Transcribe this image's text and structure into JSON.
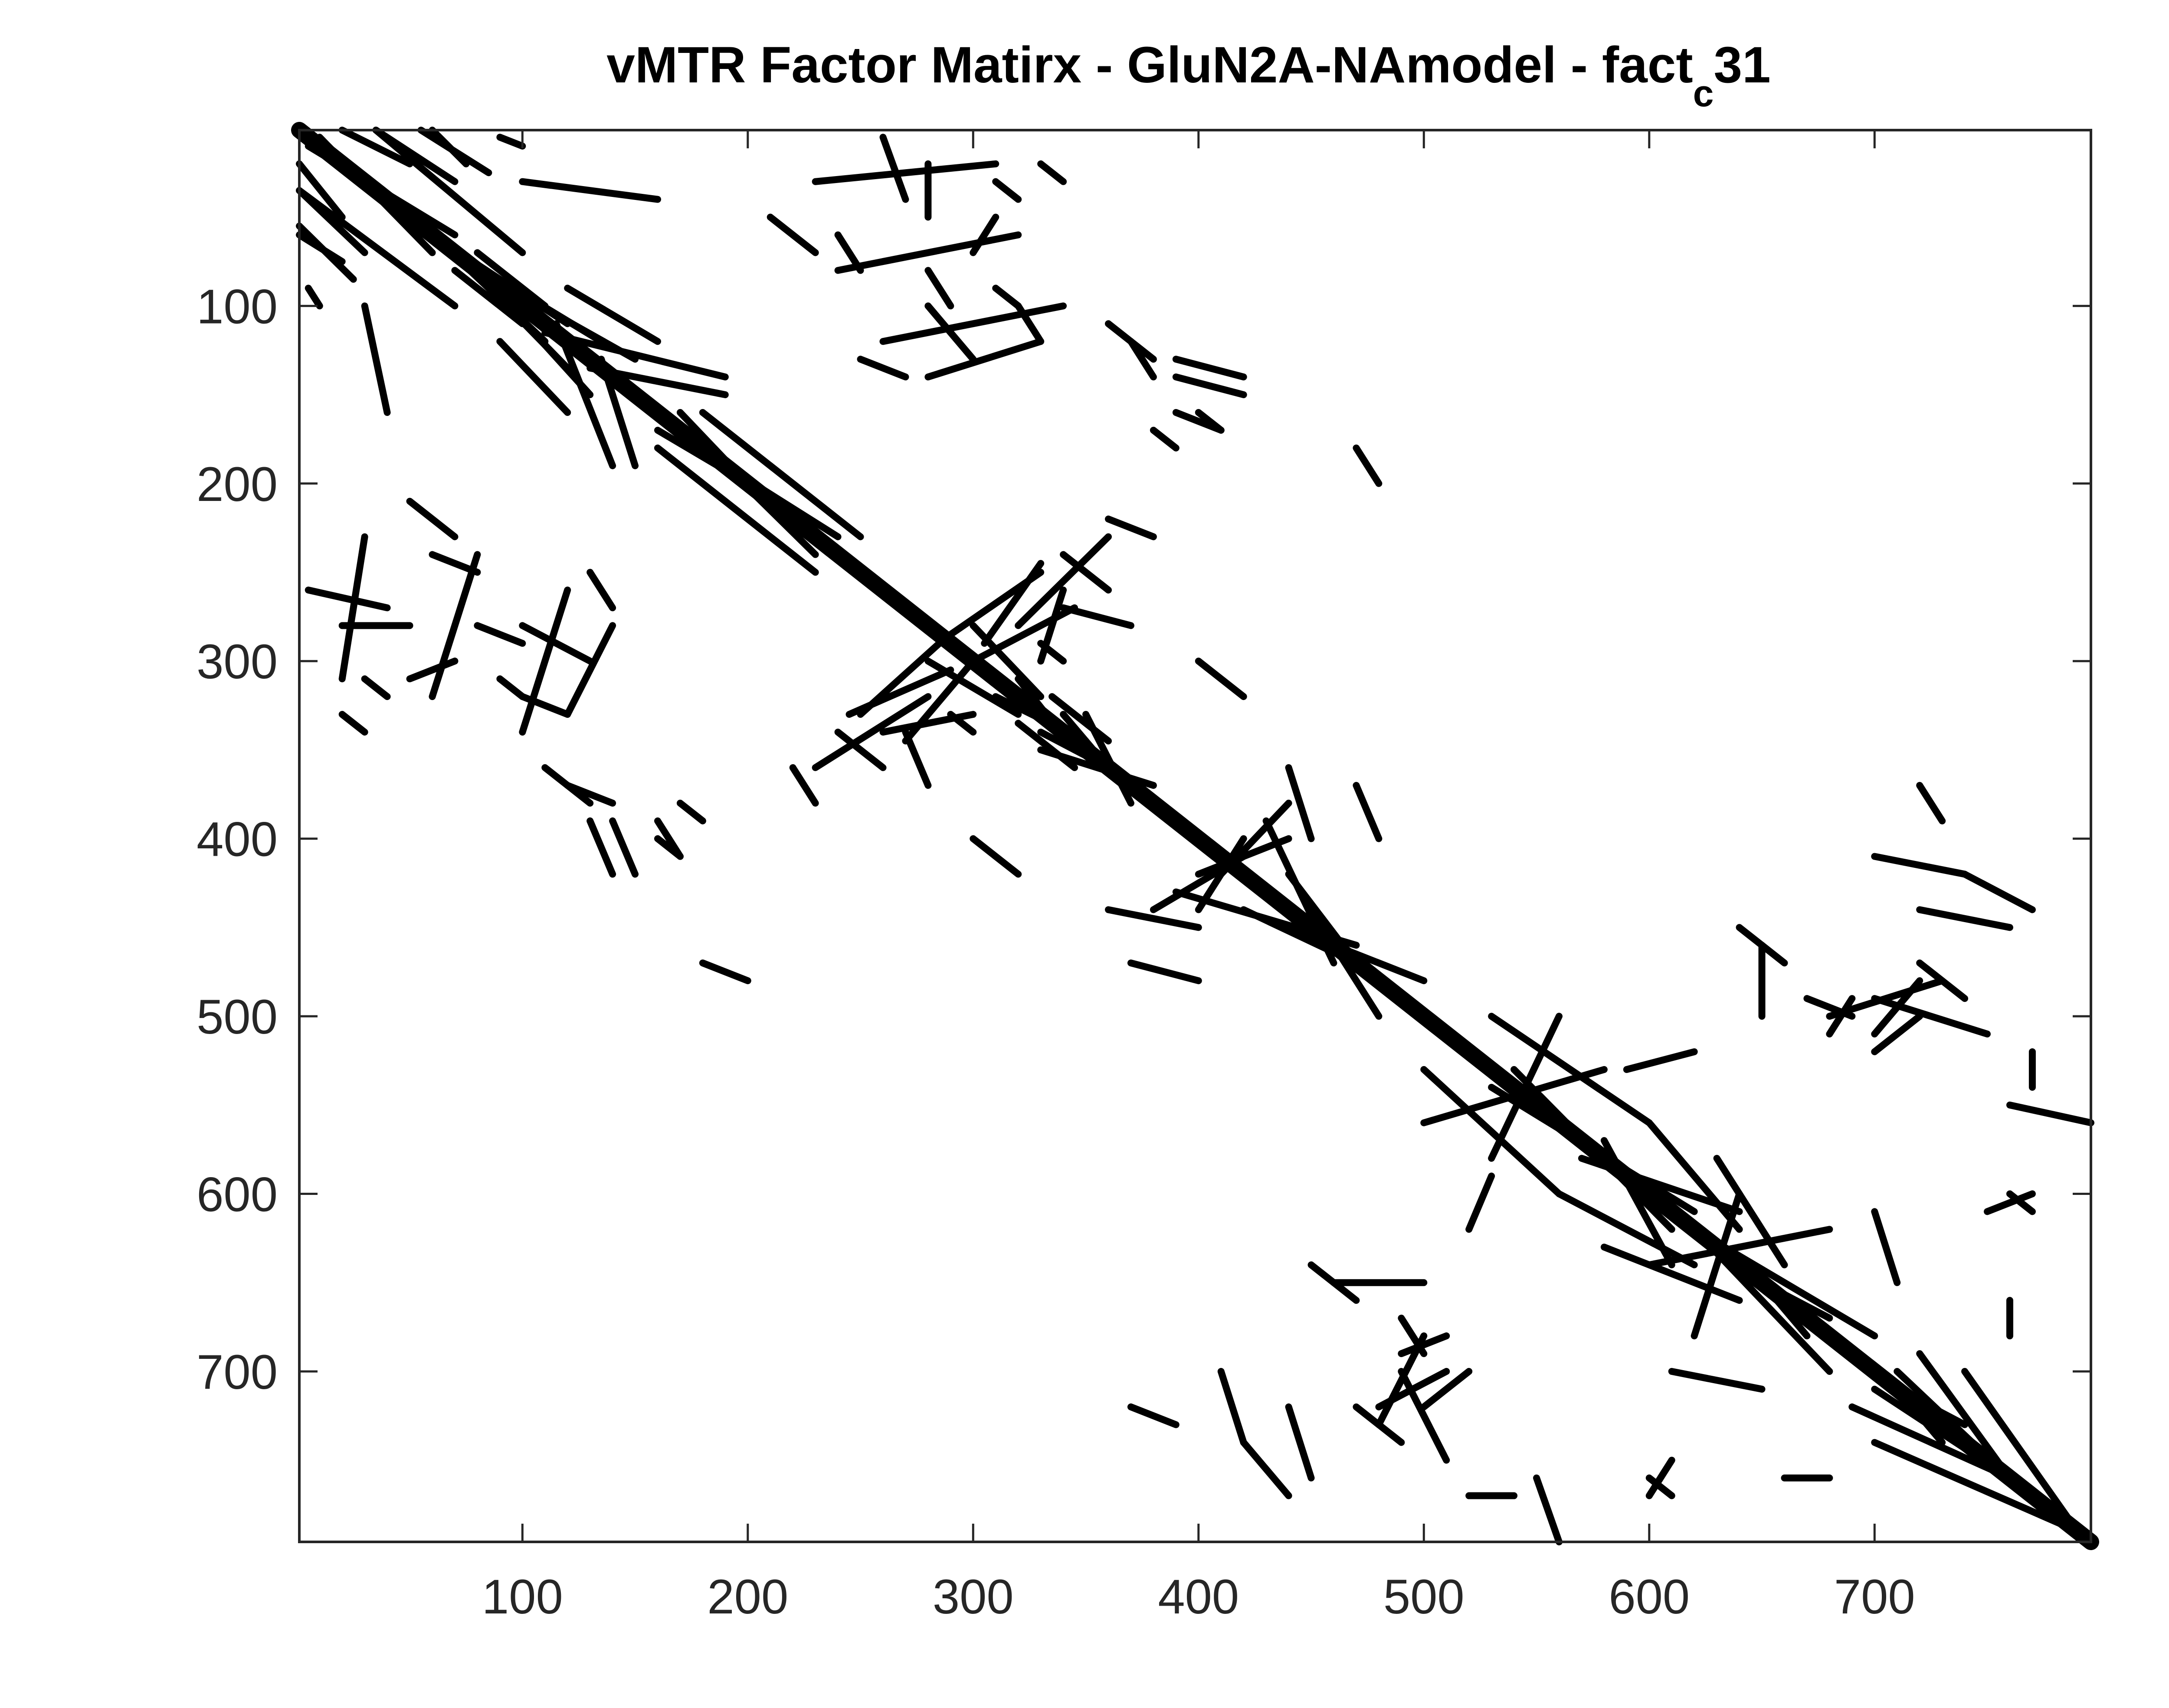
{
  "chart_data": {
    "type": "heatmap",
    "title": "vMTR Factor Matirx - GluN2A-NAmodel - fact",
    "title_subscript": "c",
    "title_suffix": "31",
    "xlabel": "",
    "ylabel": "",
    "xlim": [
      1,
      796
    ],
    "ylim": [
      1,
      796
    ],
    "y_reversed": true,
    "xticks": [
      100,
      200,
      300,
      400,
      500,
      600,
      700
    ],
    "yticks": [
      100,
      200,
      300,
      400,
      500,
      600,
      700
    ],
    "grid": false,
    "colors": {
      "filled": "#000000",
      "background": "#ffffff",
      "axis": "#262626"
    },
    "main_diagonal": {
      "from": 1,
      "to": 796
    },
    "segments": [
      [
        1,
        35,
        70,
        100
      ],
      [
        1,
        60,
        20,
        75
      ],
      [
        10,
        5,
        60,
        70
      ],
      [
        20,
        1,
        50,
        20
      ],
      [
        35,
        1,
        70,
        30
      ],
      [
        55,
        1,
        85,
        25
      ],
      [
        90,
        5,
        100,
        10
      ],
      [
        60,
        60,
        120,
        110
      ],
      [
        70,
        70,
        135,
        120
      ],
      [
        80,
        80,
        150,
        130
      ],
      [
        110,
        115,
        190,
        140
      ],
      [
        130,
        135,
        190,
        150
      ],
      [
        170,
        160,
        200,
        200
      ],
      [
        160,
        180,
        230,
        250
      ],
      [
        190,
        190,
        240,
        230
      ],
      [
        210,
        210,
        250,
        250
      ],
      [
        100,
        30,
        160,
        40
      ],
      [
        120,
        90,
        160,
        120
      ],
      [
        70,
        80,
        100,
        110
      ],
      [
        280,
        300,
        320,
        330
      ],
      [
        310,
        320,
        350,
        345
      ],
      [
        330,
        340,
        360,
        360
      ],
      [
        230,
        360,
        280,
        320
      ],
      [
        245,
        330,
        290,
        305
      ],
      [
        300,
        300,
        345,
        270
      ],
      [
        290,
        285,
        330,
        250
      ],
      [
        260,
        340,
        300,
        330
      ],
      [
        335,
        320,
        360,
        345
      ],
      [
        350,
        330,
        370,
        380
      ],
      [
        390,
        390,
        430,
        430
      ],
      [
        400,
        420,
        440,
        400
      ],
      [
        380,
        440,
        420,
        410
      ],
      [
        390,
        430,
        470,
        460
      ],
      [
        420,
        440,
        470,
        470
      ],
      [
        440,
        450,
        500,
        480
      ],
      [
        360,
        440,
        400,
        450
      ],
      [
        370,
        470,
        400,
        480
      ],
      [
        530,
        500,
        600,
        560
      ],
      [
        500,
        560,
        580,
        530
      ],
      [
        540,
        530,
        610,
        620
      ],
      [
        560,
        560,
        600,
        600
      ],
      [
        570,
        580,
        640,
        610
      ],
      [
        590,
        530,
        620,
        520
      ],
      [
        600,
        640,
        680,
        620
      ],
      [
        620,
        620,
        700,
        680
      ],
      [
        630,
        630,
        710,
        710
      ],
      [
        690,
        720,
        760,
        760
      ],
      [
        700,
        740,
        790,
        790
      ],
      [
        710,
        700,
        760,
        760
      ],
      [
        680,
        500,
        730,
        480
      ],
      [
        700,
        490,
        750,
        510
      ],
      [
        720,
        470,
        740,
        490
      ],
      [
        740,
        420,
        770,
        440
      ],
      [
        760,
        550,
        796,
        560
      ],
      [
        750,
        610,
        770,
        600
      ],
      [
        700,
        520,
        720,
        500
      ],
      [
        560,
        600,
        620,
        640
      ],
      [
        580,
        630,
        640,
        660
      ],
      [
        480,
        720,
        510,
        700
      ],
      [
        490,
        690,
        510,
        680
      ],
      [
        460,
        650,
        500,
        650
      ],
      [
        520,
        770,
        540,
        770
      ],
      [
        440,
        720,
        450,
        760
      ],
      [
        410,
        700,
        420,
        740
      ],
      [
        370,
        720,
        390,
        730
      ],
      [
        600,
        760,
        610,
        770
      ],
      [
        640,
        450,
        660,
        470
      ],
      [
        670,
        490,
        690,
        500
      ],
      [
        650,
        650,
        680,
        670
      ],
      [
        610,
        700,
        650,
        710
      ],
      [
        660,
        760,
        680,
        760
      ],
      [
        710,
        710,
        740,
        730
      ],
      [
        120,
        370,
        140,
        380
      ],
      [
        130,
        390,
        140,
        420
      ],
      [
        160,
        390,
        170,
        410
      ],
      [
        180,
        470,
        200,
        480
      ],
      [
        300,
        400,
        320,
        420
      ],
      [
        290,
        330,
        300,
        340
      ],
      [
        5,
        260,
        40,
        270
      ],
      [
        20,
        280,
        50,
        280
      ],
      [
        80,
        280,
        100,
        290
      ],
      [
        30,
        310,
        40,
        320
      ],
      [
        100,
        320,
        120,
        330
      ],
      [
        100,
        280,
        130,
        300
      ],
      [
        50,
        210,
        70,
        230
      ],
      [
        60,
        240,
        80,
        250
      ],
      [
        230,
        30,
        310,
        20
      ],
      [
        240,
        80,
        320,
        60
      ],
      [
        260,
        120,
        340,
        100
      ],
      [
        280,
        140,
        330,
        120
      ],
      [
        300,
        70,
        310,
        50
      ],
      [
        310,
        90,
        320,
        100
      ],
      [
        250,
        130,
        270,
        140
      ],
      [
        330,
        20,
        340,
        30
      ],
      [
        360,
        110,
        380,
        130
      ],
      [
        390,
        140,
        420,
        150
      ],
      [
        400,
        160,
        410,
        170
      ],
      [
        380,
        170,
        390,
        180
      ],
      [
        340,
        240,
        360,
        260
      ],
      [
        360,
        220,
        380,
        230
      ],
      [
        340,
        270,
        370,
        280
      ]
    ]
  }
}
